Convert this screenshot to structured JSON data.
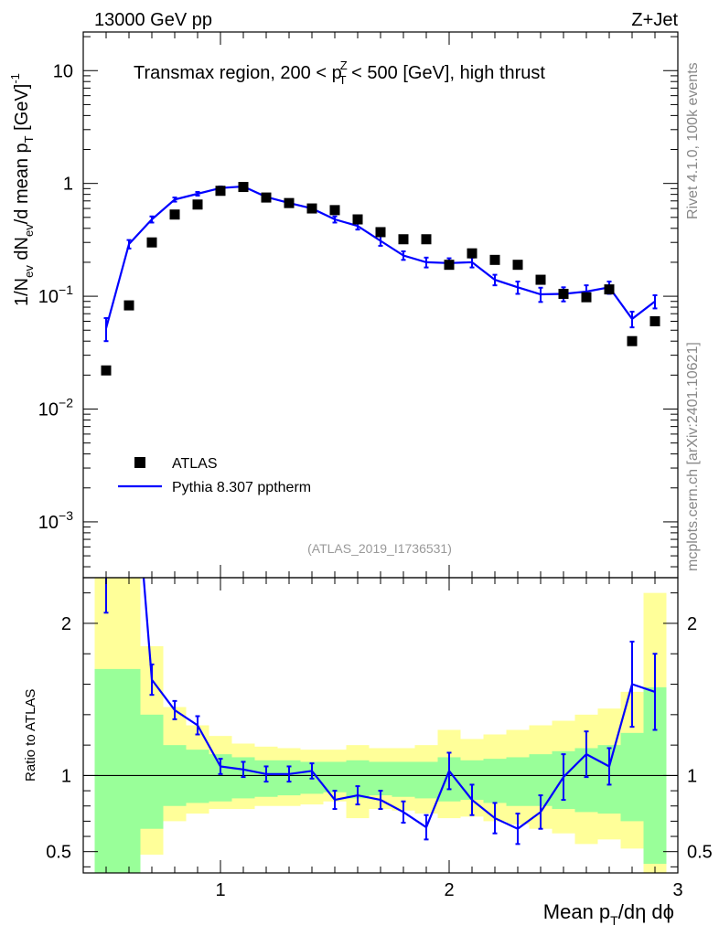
{
  "header": {
    "left": "13000 GeV pp",
    "right": "Z+Jet"
  },
  "side_labels": {
    "rivet": "Rivet 4.1.0,  100k events",
    "mcplots": "mcplots.cern.ch [arXiv:2401.10621]"
  },
  "chart_data": [
    {
      "type": "scatter",
      "panel": "main",
      "title_parts": {
        "pre": "Transmax region, 200 < p",
        "sup": "Z",
        "sub": "T",
        "post": " < 500 [GeV], high thrust"
      },
      "ylabel": "1/N_ev dN_ev/d mean p_T [GeV]^-1",
      "yscale": "log",
      "ylim": [
        0.00032,
        22
      ],
      "xlim": [
        0.4,
        3.0
      ],
      "y_ticks": [
        {
          "value": 10,
          "label": "10"
        },
        {
          "value": 1,
          "label": "1"
        },
        {
          "value": 0.1,
          "base": "10",
          "exp": "−1"
        },
        {
          "value": 0.01,
          "base": "10",
          "exp": "−2"
        },
        {
          "value": 0.001,
          "base": "10",
          "exp": "−3"
        }
      ],
      "analysis_label": "(ATLAS_2019_I1736531)",
      "legend": [
        {
          "name": "ATLAS",
          "marker": "square",
          "color": "#000000"
        },
        {
          "name": "Pythia 8.307 pptherm",
          "marker": "line",
          "color": "#0000ff"
        }
      ],
      "series": [
        {
          "name": "ATLAS",
          "x": [
            0.5,
            0.6,
            0.7,
            0.8,
            0.9,
            1.0,
            1.1,
            1.2,
            1.3,
            1.4,
            1.5,
            1.6,
            1.7,
            1.8,
            1.9,
            2.0,
            2.1,
            2.2,
            2.3,
            2.4,
            2.5,
            2.6,
            2.7,
            2.8,
            2.9
          ],
          "y": [
            0.022,
            0.083,
            0.3,
            0.53,
            0.65,
            0.86,
            0.93,
            0.75,
            0.67,
            0.6,
            0.58,
            0.48,
            0.37,
            0.32,
            0.32,
            0.19,
            0.24,
            0.21,
            0.19,
            0.14,
            0.105,
            0.098,
            0.115,
            0.04,
            0.06
          ]
        },
        {
          "name": "Pythia 8.307 pptherm",
          "x": [
            0.5,
            0.6,
            0.7,
            0.8,
            0.9,
            1.0,
            1.1,
            1.2,
            1.3,
            1.4,
            1.5,
            1.6,
            1.7,
            1.8,
            1.9,
            2.0,
            2.1,
            2.2,
            2.3,
            2.4,
            2.5,
            2.6,
            2.7,
            2.8,
            2.9
          ],
          "y": [
            0.052,
            0.29,
            0.48,
            0.72,
            0.81,
            0.91,
            0.94,
            0.76,
            0.67,
            0.6,
            0.48,
            0.42,
            0.31,
            0.23,
            0.2,
            0.197,
            0.2,
            0.14,
            0.12,
            0.104,
            0.105,
            0.11,
            0.12,
            0.063,
            0.09
          ],
          "err": [
            0.012,
            0.025,
            0.03,
            0.03,
            0.03,
            0.03,
            0.03,
            0.03,
            0.03,
            0.03,
            0.03,
            0.03,
            0.03,
            0.02,
            0.02,
            0.02,
            0.02,
            0.015,
            0.015,
            0.015,
            0.015,
            0.015,
            0.015,
            0.01,
            0.012
          ]
        }
      ]
    },
    {
      "type": "line",
      "panel": "ratio",
      "ylabel": "Ratio to ATLAS",
      "xlabel_parts": {
        "pre": "Mean p",
        "sub": "T",
        "post": "/dη dϕ"
      },
      "xlim": [
        0.4,
        3.0
      ],
      "ylim": [
        0.36,
        2.3
      ],
      "x_ticks": [
        {
          "value": 1,
          "label": "1"
        },
        {
          "value": 2,
          "label": "2"
        },
        {
          "value": 3,
          "label": "3"
        }
      ],
      "y_ticks": [
        {
          "value": 2,
          "label": "2"
        },
        {
          "value": 1,
          "label": "1"
        },
        {
          "value": 0.5,
          "label": "0.5"
        }
      ],
      "bands": {
        "x_edges": [
          0.45,
          0.55,
          0.65,
          0.75,
          0.85,
          0.95,
          1.05,
          1.15,
          1.25,
          1.35,
          1.45,
          1.55,
          1.65,
          1.75,
          1.85,
          1.95,
          2.05,
          2.15,
          2.25,
          2.35,
          2.45,
          2.55,
          2.65,
          2.75,
          2.85,
          2.95
        ],
        "stat_lo": [
          0.3,
          0.3,
          0.65,
          0.8,
          0.82,
          0.83,
          0.85,
          0.86,
          0.87,
          0.88,
          0.89,
          0.85,
          0.87,
          0.86,
          0.85,
          0.83,
          0.84,
          0.82,
          0.8,
          0.8,
          0.78,
          0.76,
          0.75,
          0.7,
          0.42,
          0.35
        ],
        "stat_hi": [
          1.7,
          1.7,
          1.4,
          1.2,
          1.17,
          1.14,
          1.12,
          1.1,
          1.1,
          1.09,
          1.09,
          1.1,
          1.09,
          1.09,
          1.09,
          1.12,
          1.1,
          1.11,
          1.12,
          1.14,
          1.16,
          1.18,
          1.2,
          1.28,
          1.58,
          1.65
        ],
        "tot_lo": [
          0.3,
          0.3,
          0.48,
          0.7,
          0.75,
          0.78,
          0.78,
          0.8,
          0.8,
          0.81,
          0.83,
          0.72,
          0.78,
          0.77,
          0.75,
          0.72,
          0.73,
          0.7,
          0.68,
          0.65,
          0.62,
          0.55,
          0.58,
          0.52,
          0.3,
          0.3
        ],
        "tot_hi": [
          2.4,
          2.4,
          1.85,
          1.45,
          1.33,
          1.26,
          1.21,
          1.19,
          1.18,
          1.17,
          1.17,
          1.2,
          1.18,
          1.18,
          1.2,
          1.3,
          1.24,
          1.27,
          1.3,
          1.33,
          1.36,
          1.4,
          1.44,
          1.55,
          2.2,
          2.2
        ]
      },
      "series": [
        {
          "name": "Pythia 8.307 pptherm / ATLAS",
          "x": [
            0.5,
            0.6,
            0.7,
            0.8,
            0.9,
            1.0,
            1.1,
            1.2,
            1.3,
            1.4,
            1.5,
            1.6,
            1.7,
            1.8,
            1.9,
            2.0,
            2.1,
            2.2,
            2.3,
            2.4,
            2.5,
            2.6,
            2.7,
            2.8,
            2.9
          ],
          "y": [
            2.35,
            3.5,
            1.63,
            1.43,
            1.33,
            1.06,
            1.04,
            1.01,
            1.01,
            1.03,
            0.84,
            0.87,
            0.84,
            0.76,
            0.66,
            1.03,
            0.84,
            0.72,
            0.65,
            0.76,
            0.99,
            1.14,
            1.06,
            1.6,
            1.55
          ],
          "err": [
            0.28,
            0.3,
            0.1,
            0.06,
            0.06,
            0.05,
            0.05,
            0.05,
            0.05,
            0.05,
            0.06,
            0.06,
            0.06,
            0.07,
            0.08,
            0.12,
            0.1,
            0.1,
            0.1,
            0.11,
            0.15,
            0.15,
            0.12,
            0.28,
            0.25
          ]
        }
      ]
    }
  ]
}
